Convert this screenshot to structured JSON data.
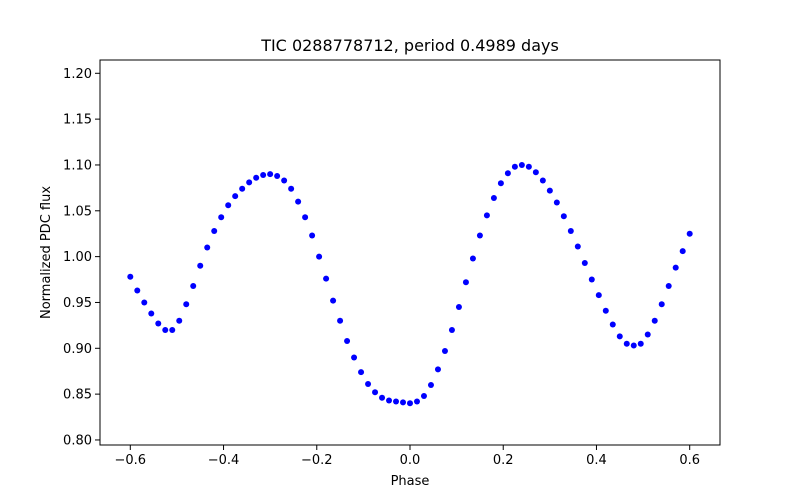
{
  "chart_data": {
    "type": "scatter",
    "title": "TIC 0288778712, period 0.4989 days",
    "xlabel": "Phase",
    "ylabel": "Normalized PDC flux",
    "xlim": [
      -0.665,
      0.665
    ],
    "ylim": [
      0.7945,
      1.2145
    ],
    "x_ticks": [
      -0.6,
      -0.4,
      -0.2,
      0.0,
      0.2,
      0.4,
      0.6
    ],
    "x_tick_labels": [
      "−0.6",
      "−0.4",
      "−0.2",
      "0.0",
      "0.2",
      "0.4",
      "0.6"
    ],
    "y_ticks": [
      0.8,
      0.85,
      0.9,
      0.95,
      1.0,
      1.05,
      1.1,
      1.15,
      1.2
    ],
    "y_tick_labels": [
      "0.80",
      "0.85",
      "0.90",
      "0.95",
      "1.00",
      "1.05",
      "1.10",
      "1.15",
      "1.20"
    ],
    "grid": false,
    "marker_color": "#0000ff",
    "series": [
      {
        "x": [
          -0.6,
          -0.585,
          -0.57,
          -0.555,
          -0.54,
          -0.525,
          -0.51,
          -0.495,
          -0.48,
          -0.465,
          -0.45,
          -0.435,
          -0.42,
          -0.405,
          -0.39,
          -0.375,
          -0.36,
          -0.345,
          -0.33,
          -0.315,
          -0.3,
          -0.285,
          -0.27,
          -0.255,
          -0.24,
          -0.225,
          -0.21,
          -0.195,
          -0.18,
          -0.165,
          -0.15,
          -0.135,
          -0.12,
          -0.105,
          -0.09,
          -0.075,
          -0.06,
          -0.045,
          -0.03,
          -0.015,
          0.0,
          0.015,
          0.03,
          0.045,
          0.06,
          0.075,
          0.09,
          0.105,
          0.12,
          0.135,
          0.15,
          0.165,
          0.18,
          0.195,
          0.21,
          0.225,
          0.24,
          0.255,
          0.27,
          0.285,
          0.3,
          0.315,
          0.33,
          0.345,
          0.36,
          0.375,
          0.39,
          0.405,
          0.42,
          0.435,
          0.45,
          0.465,
          0.48,
          0.495,
          0.51,
          0.525,
          0.54,
          0.555,
          0.57,
          0.585,
          0.6
        ],
        "y": [
          0.978,
          0.963,
          0.95,
          0.938,
          0.927,
          0.92,
          0.92,
          0.93,
          0.948,
          0.968,
          0.99,
          1.01,
          1.028,
          1.043,
          1.056,
          1.066,
          1.074,
          1.081,
          1.086,
          1.089,
          1.09,
          1.088,
          1.083,
          1.074,
          1.06,
          1.043,
          1.023,
          1.0,
          0.976,
          0.952,
          0.93,
          0.908,
          0.89,
          0.874,
          0.861,
          0.852,
          0.846,
          0.843,
          0.842,
          0.841,
          0.84,
          0.842,
          0.848,
          0.86,
          0.877,
          0.897,
          0.92,
          0.945,
          0.972,
          0.998,
          1.023,
          1.045,
          1.064,
          1.08,
          1.091,
          1.098,
          1.1,
          1.098,
          1.092,
          1.083,
          1.072,
          1.059,
          1.044,
          1.028,
          1.011,
          0.993,
          0.975,
          0.958,
          0.941,
          0.926,
          0.913,
          0.905,
          0.903,
          0.905,
          0.915,
          0.93,
          0.948,
          0.968,
          0.988,
          1.006,
          1.025
        ]
      }
    ]
  }
}
